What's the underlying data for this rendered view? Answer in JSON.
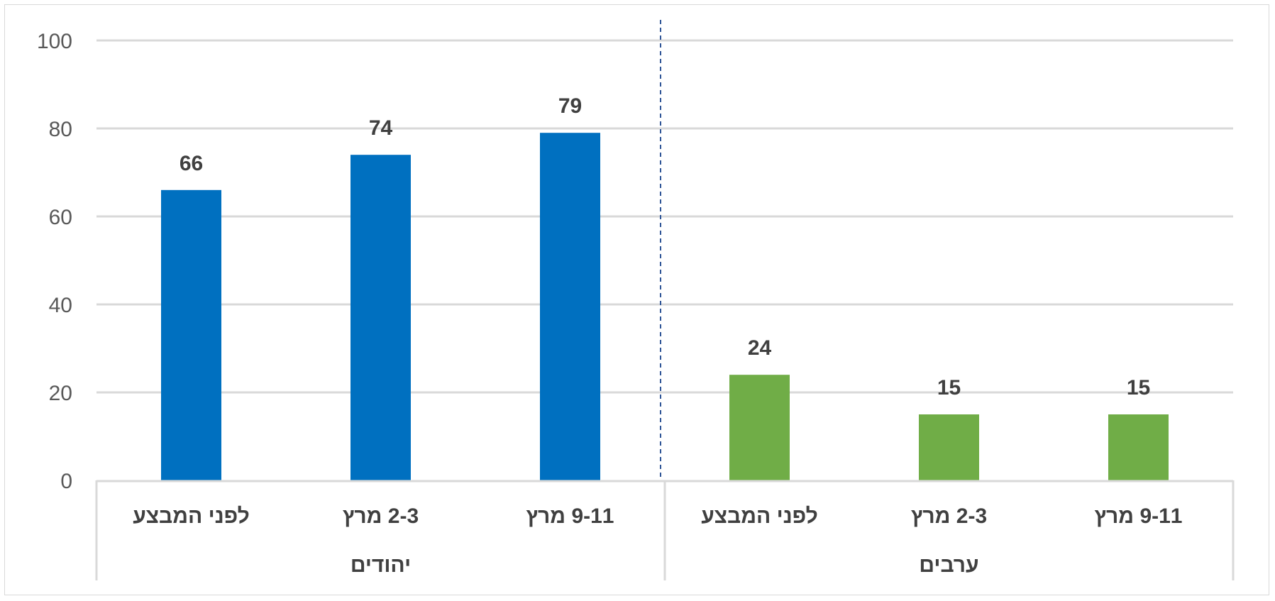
{
  "chart_data": {
    "type": "bar",
    "ylim": [
      0,
      100
    ],
    "yticks": [
      0,
      20,
      40,
      60,
      80,
      100
    ],
    "grid": true,
    "groups": [
      {
        "name": "יהודים",
        "color": "#0070C0",
        "categories": [
          "לפני המבצע",
          "2-3 מרץ",
          "9-11 מרץ"
        ],
        "values": [
          66,
          74,
          79
        ]
      },
      {
        "name": "ערבים",
        "color": "#70AD47",
        "categories": [
          "לפני המבצע",
          "2-3 מרץ",
          "9-11 מרץ"
        ],
        "values": [
          24,
          15,
          15
        ]
      }
    ]
  }
}
